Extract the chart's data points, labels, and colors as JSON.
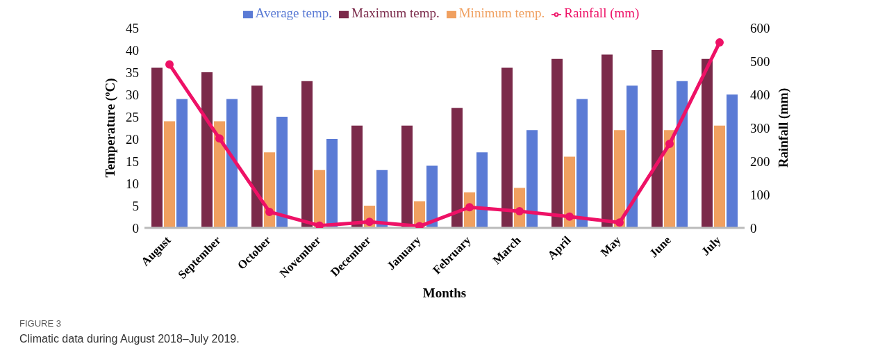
{
  "chart_data": {
    "type": "bar",
    "xlabel": "Months",
    "ylabel": "Temperature (ºC)",
    "y2label": "Rainfall (mm)",
    "categories": [
      "August",
      "September",
      "October",
      "November",
      "December",
      "January",
      "February",
      "March",
      "April",
      "May",
      "June",
      "July"
    ],
    "series": [
      {
        "name": "Maximum temp.",
        "color": "#7b2a4a",
        "values": [
          36,
          35,
          32,
          33,
          23,
          23,
          27,
          36,
          38,
          39,
          40,
          38
        ]
      },
      {
        "name": "Minimum temp.",
        "color": "#f0a060",
        "values": [
          24,
          24,
          17,
          13,
          5,
          6,
          8,
          9,
          16,
          22,
          22,
          23
        ]
      },
      {
        "name": "Average temp.",
        "color": "#5b7bd5",
        "values": [
          29,
          29,
          25,
          20,
          13,
          14,
          17,
          22,
          29,
          32,
          33,
          30
        ]
      },
      {
        "name": "Rainfall (mm)",
        "type": "line",
        "axis": "y2",
        "color": "#ee1166",
        "marker": "circle",
        "values": [
          490,
          268,
          48,
          7,
          18,
          5,
          62,
          50,
          34,
          16,
          252,
          556
        ]
      }
    ],
    "ylim": [
      0,
      45
    ],
    "yticks": [
      0,
      5,
      10,
      15,
      20,
      25,
      30,
      35,
      40,
      45
    ],
    "y2lim": [
      0,
      600
    ],
    "y2ticks": [
      0,
      100,
      200,
      300,
      400,
      500,
      600
    ],
    "grid": false,
    "legend": "top",
    "annotations": [
      "FIGURE 3",
      "Climatic data during August 2018–July 2019."
    ]
  }
}
